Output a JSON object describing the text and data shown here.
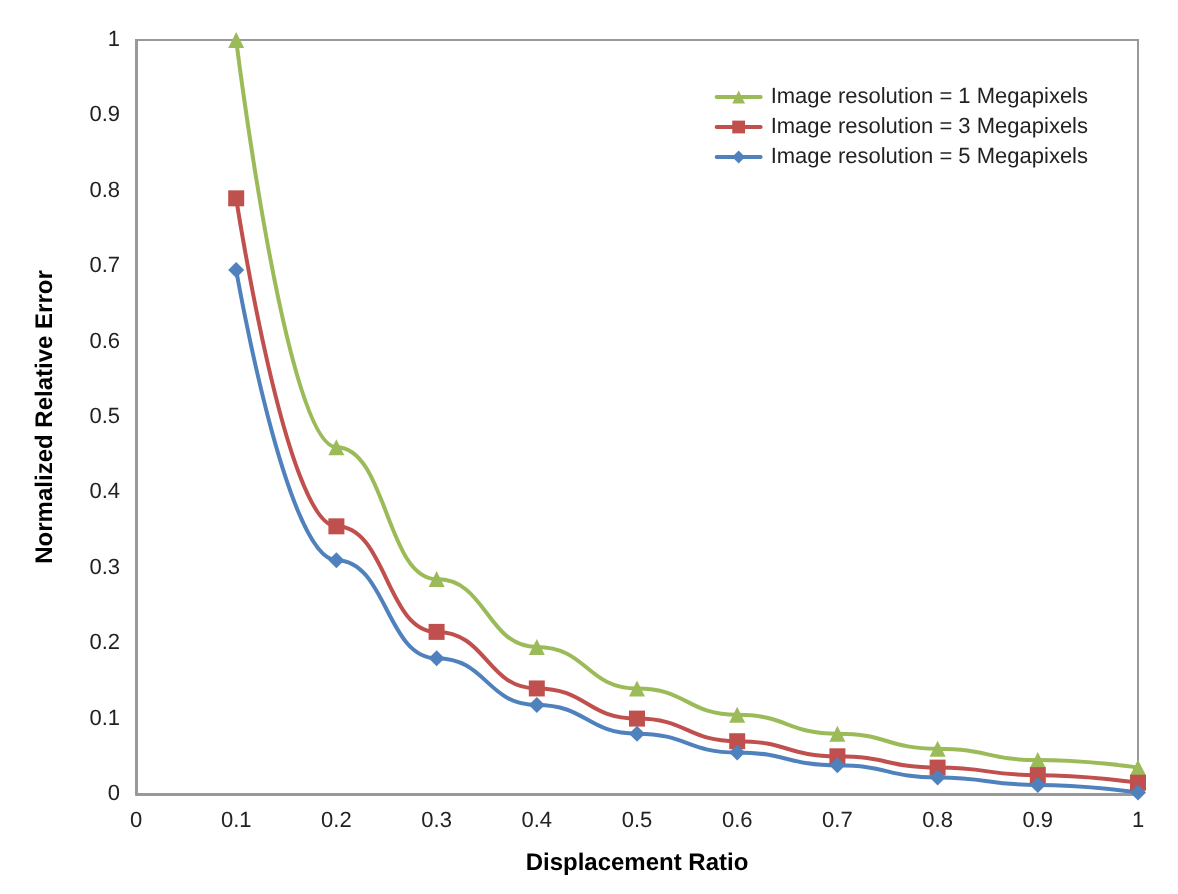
{
  "chart_data": {
    "type": "line",
    "xlabel": "Displacement Ratio",
    "ylabel": "Normalized Relative Error",
    "x": [
      0.1,
      0.2,
      0.3,
      0.4,
      0.5,
      0.6,
      0.7,
      0.8,
      0.9,
      1
    ],
    "series": [
      {
        "name": "Image resolution = 1 Megapixels",
        "color": "#9bbb59",
        "marker": "triangle",
        "values": [
          1.0,
          0.46,
          0.285,
          0.195,
          0.14,
          0.105,
          0.08,
          0.06,
          0.045,
          0.035
        ]
      },
      {
        "name": "Image resolution = 3 Megapixels",
        "color": "#c0504d",
        "marker": "square",
        "values": [
          0.79,
          0.355,
          0.215,
          0.14,
          0.1,
          0.07,
          0.05,
          0.035,
          0.025,
          0.015
        ]
      },
      {
        "name": "Image resolution = 5 Megapixels",
        "color": "#4f81bd",
        "marker": "diamond",
        "values": [
          0.695,
          0.31,
          0.18,
          0.118,
          0.08,
          0.055,
          0.038,
          0.022,
          0.012,
          0.002
        ]
      }
    ],
    "xlim": [
      0,
      1
    ],
    "xticks": [
      0,
      0.1,
      0.2,
      0.3,
      0.4,
      0.5,
      0.6,
      0.7,
      0.8,
      0.9,
      1
    ],
    "ylim": [
      0,
      1
    ],
    "yticks": [
      0,
      0.1,
      0.2,
      0.3,
      0.4,
      0.5,
      0.6,
      0.7,
      0.8,
      0.9,
      1
    ],
    "grid": false,
    "legend": "top right",
    "line_style": "solid"
  }
}
